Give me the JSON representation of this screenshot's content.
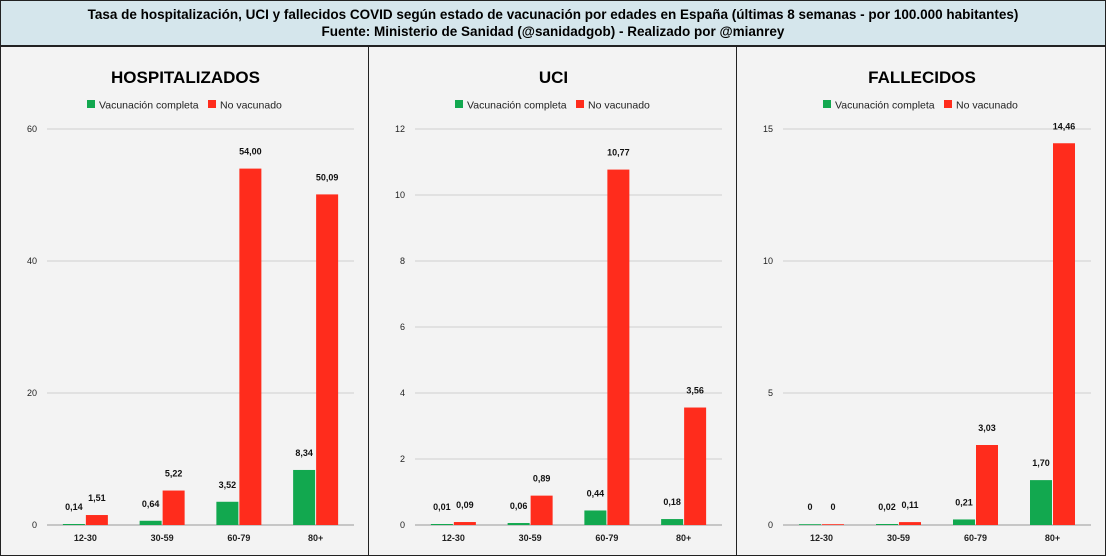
{
  "header": {
    "line1": "Tasa de hospitalización, UCI y fallecidos COVID según estado de vacunación por edades en España (últimas 8 semanas - por 100.000 habitantes)",
    "line2": "Fuente: Ministerio de Sanidad (@sanidadgob) - Realizado por @mianrey"
  },
  "colors": {
    "vaccinated": "#12a84f",
    "unvaccinated": "#ff2c1c",
    "grid": "#cfcfcf"
  },
  "chart_data": [
    {
      "type": "bar",
      "title": "HOSPITALIZADOS",
      "categories": [
        "12-30",
        "30-59",
        "60-79",
        "80+"
      ],
      "series": [
        {
          "name": "Vacunación completa",
          "values": [
            0.14,
            0.64,
            3.52,
            8.34
          ],
          "labels": [
            "0,14",
            "0,64",
            "3,52",
            "8,34"
          ]
        },
        {
          "name": "No vacunado",
          "values": [
            1.51,
            5.22,
            54.0,
            50.09
          ],
          "labels": [
            "1,51",
            "5,22",
            "54,00",
            "50,09"
          ]
        }
      ],
      "ylim": [
        0,
        60
      ],
      "yticks": [
        0,
        20,
        40,
        60
      ],
      "grid": true,
      "legend": "top"
    },
    {
      "type": "bar",
      "title": "UCI",
      "categories": [
        "12-30",
        "30-59",
        "60-79",
        "80+"
      ],
      "series": [
        {
          "name": "Vacunación completa",
          "values": [
            0.01,
            0.06,
            0.44,
            0.18
          ],
          "labels": [
            "0,01",
            "0,06",
            "0,44",
            "0,18"
          ]
        },
        {
          "name": "No vacunado",
          "values": [
            0.09,
            0.89,
            10.77,
            3.56
          ],
          "labels": [
            "0,09",
            "0,89",
            "10,77",
            "3,56"
          ]
        }
      ],
      "ylim": [
        0,
        12
      ],
      "yticks": [
        0,
        2,
        4,
        6,
        8,
        10,
        12
      ],
      "grid": true,
      "legend": "top"
    },
    {
      "type": "bar",
      "title": "FALLECIDOS",
      "categories": [
        "12-30",
        "30-59",
        "60-79",
        "80+"
      ],
      "series": [
        {
          "name": "Vacunación completa",
          "values": [
            0,
            0.02,
            0.21,
            1.7
          ],
          "labels": [
            "0",
            "0,02",
            "0,21",
            "1,70"
          ]
        },
        {
          "name": "No vacunado",
          "values": [
            0,
            0.11,
            3.03,
            14.46
          ],
          "labels": [
            "0",
            "0,11",
            "3,03",
            "14,46"
          ]
        }
      ],
      "ylim": [
        0,
        15
      ],
      "yticks": [
        0,
        5,
        10,
        15
      ],
      "grid": true,
      "legend": "top"
    }
  ]
}
